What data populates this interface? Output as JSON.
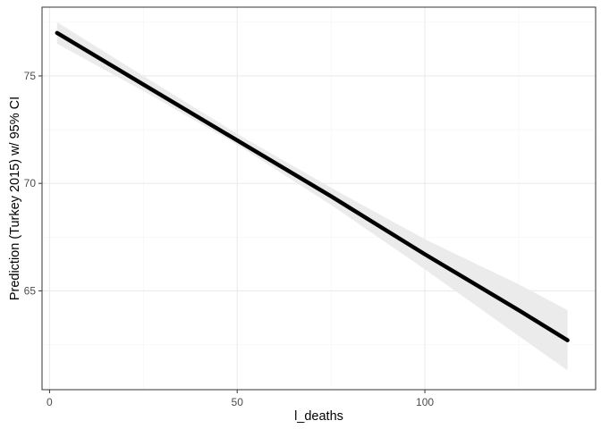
{
  "chart_data": {
    "type": "line",
    "title": "",
    "xlabel": "l_deaths",
    "ylabel": "Prediction (Turkey 2015) w/ 95% CI",
    "xlim": [
      -2,
      145.5
    ],
    "ylim": [
      60.4,
      78.2
    ],
    "grid": true,
    "x_ticks": [
      0,
      50,
      100
    ],
    "x_tick_labels": [
      "0",
      "50",
      "100"
    ],
    "y_ticks": [
      65,
      70,
      75
    ],
    "y_tick_labels": [
      "65",
      "70",
      "75"
    ],
    "x_minor_ticks": [
      25,
      75,
      125
    ],
    "y_minor_ticks": [
      62.5,
      67.5,
      72.5,
      77.5
    ],
    "series": [
      {
        "x": [
          2,
          25,
          50,
          75,
          100,
          125,
          138
        ],
        "y": [
          77.0,
          74.6,
          72.0,
          69.4,
          66.7,
          64.1,
          62.7
        ],
        "ci_lower": [
          76.5,
          74.3,
          71.8,
          69.0,
          66.0,
          62.9,
          61.3
        ],
        "ci_upper": [
          77.5,
          75.0,
          72.3,
          69.8,
          67.4,
          65.3,
          64.1
        ]
      }
    ],
    "colors": {
      "line": "#000000",
      "ribbon": "#ebebeb",
      "grid_major": "#ebebeb",
      "grid_minor": "#f5f5f5",
      "panel_border": "#333333"
    }
  }
}
